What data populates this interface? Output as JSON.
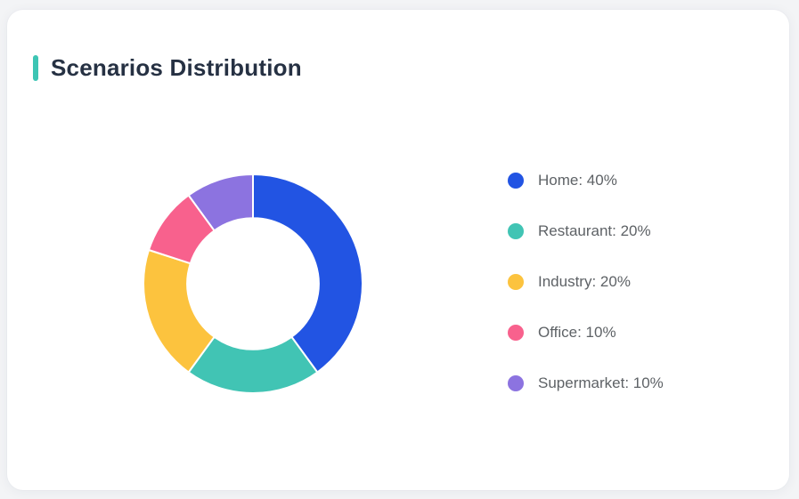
{
  "page": {
    "background_color": "#F3F4F6"
  },
  "card": {
    "title": "Scenarios Distribution",
    "accent_color": "#3DC5B4",
    "title_color": "#263143",
    "background_color": "#FFFFFF"
  },
  "chart_data": {
    "type": "pie",
    "donut": true,
    "title": "Scenarios Distribution",
    "categories": [
      "Home",
      "Restaurant",
      "Industry",
      "Office",
      "Supermarket"
    ],
    "values": [
      40,
      20,
      20,
      10,
      10
    ],
    "unit": "%",
    "colors": [
      "#2254E3",
      "#41C4B4",
      "#FCC33E",
      "#F8618D",
      "#8C73E0"
    ],
    "legend_labels": [
      "Home: 40%",
      "Restaurant: 20%",
      "Industry: 20%",
      "Office: 10%",
      "Supermarket: 10%"
    ],
    "legend_position": "right",
    "start_angle_deg": 0,
    "direction": "clockwise",
    "inner_radius_ratio": 0.6,
    "slice_gap_color": "#FFFFFF"
  }
}
